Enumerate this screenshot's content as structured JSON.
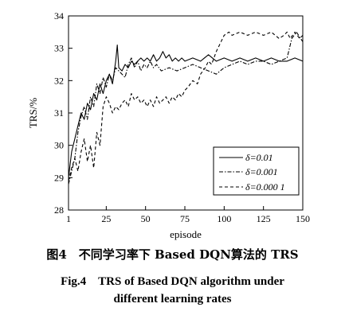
{
  "caption": {
    "cn": "图4　不同学习率下 Based DQN算法的 TRS",
    "en_line1": "Fig.4　TRS of Based DQN algorithm under",
    "en_line2": "different learning rates"
  },
  "chart_data": {
    "type": "line",
    "title": "",
    "xlabel": "episode",
    "ylabel": "TRS/%",
    "xlim": [
      1,
      150
    ],
    "ylim": [
      28,
      34
    ],
    "xticks": [
      1,
      25,
      50,
      75,
      100,
      125,
      150
    ],
    "xtick_labels": [
      "1",
      "25",
      "50",
      "75",
      "100",
      "125",
      "150"
    ],
    "yticks": [
      28,
      29,
      30,
      31,
      32,
      33,
      34
    ],
    "ytick_labels": [
      "28",
      "29",
      "30",
      "31",
      "32",
      "33",
      "34"
    ],
    "grid": false,
    "legend_position": "bottom-right",
    "series": [
      {
        "name": "δ=0.01",
        "style": "solid",
        "x": [
          1,
          3,
          5,
          7,
          9,
          11,
          13,
          15,
          17,
          19,
          21,
          23,
          25,
          27,
          29,
          31,
          32,
          33,
          35,
          37,
          39,
          41,
          43,
          45,
          47,
          49,
          51,
          53,
          55,
          57,
          59,
          61,
          63,
          65,
          67,
          69,
          71,
          73,
          75,
          80,
          85,
          90,
          95,
          100,
          105,
          110,
          115,
          120,
          125,
          130,
          135,
          140,
          145,
          150
        ],
        "y": [
          29.0,
          29.8,
          30.2,
          30.6,
          31.0,
          30.8,
          31.3,
          31.1,
          31.6,
          31.4,
          31.9,
          31.6,
          32.0,
          32.2,
          31.9,
          32.6,
          33.1,
          32.4,
          32.3,
          32.5,
          32.4,
          32.6,
          32.5,
          32.6,
          32.7,
          32.6,
          32.7,
          32.6,
          32.8,
          32.6,
          32.7,
          32.9,
          32.7,
          32.8,
          32.6,
          32.7,
          32.6,
          32.7,
          32.6,
          32.7,
          32.6,
          32.8,
          32.6,
          32.7,
          32.6,
          32.7,
          32.6,
          32.7,
          32.6,
          32.7,
          32.6,
          32.6,
          32.7,
          32.6
        ]
      },
      {
        "name": "δ=0.001",
        "style": "dashdot",
        "x": [
          1,
          3,
          5,
          7,
          9,
          11,
          13,
          15,
          17,
          19,
          21,
          23,
          25,
          27,
          29,
          31,
          33,
          35,
          37,
          39,
          41,
          43,
          45,
          47,
          49,
          51,
          53,
          55,
          57,
          60,
          65,
          70,
          75,
          80,
          85,
          90,
          95,
          100,
          105,
          110,
          115,
          120,
          125,
          130,
          135,
          140,
          143,
          146,
          150
        ],
        "y": [
          28.8,
          29.2,
          29.6,
          30.4,
          30.9,
          31.2,
          30.8,
          31.5,
          31.2,
          31.9,
          31.6,
          32.1,
          31.8,
          32.2,
          32.0,
          32.4,
          32.3,
          32.2,
          32.1,
          32.5,
          32.7,
          32.4,
          32.6,
          32.3,
          32.5,
          32.4,
          32.6,
          32.4,
          32.5,
          32.3,
          32.4,
          32.3,
          32.4,
          32.5,
          32.4,
          32.3,
          32.2,
          32.4,
          32.5,
          32.6,
          32.5,
          32.6,
          32.6,
          32.5,
          32.6,
          32.7,
          33.3,
          33.5,
          33.2
        ]
      },
      {
        "name": "δ=0.000 1",
        "style": "dashed",
        "x": [
          1,
          3,
          5,
          7,
          9,
          11,
          13,
          15,
          17,
          19,
          21,
          23,
          25,
          27,
          29,
          31,
          33,
          35,
          37,
          39,
          41,
          43,
          45,
          47,
          49,
          51,
          53,
          55,
          57,
          59,
          61,
          63,
          65,
          67,
          69,
          71,
          73,
          75,
          77,
          80,
          83,
          85,
          88,
          90,
          92,
          95,
          98,
          100,
          103,
          105,
          110,
          115,
          120,
          125,
          130,
          135,
          138,
          140,
          142,
          145,
          148,
          150
        ],
        "y": [
          28.9,
          29.3,
          29.6,
          29.2,
          29.8,
          30.2,
          29.5,
          30.0,
          29.3,
          30.4,
          30.0,
          31.2,
          31.5,
          31.3,
          31.0,
          31.2,
          31.1,
          31.3,
          31.4,
          31.2,
          31.6,
          31.4,
          31.5,
          31.3,
          31.4,
          31.2,
          31.4,
          31.2,
          31.5,
          31.3,
          31.4,
          31.5,
          31.3,
          31.5,
          31.4,
          31.6,
          31.5,
          31.7,
          31.8,
          32.0,
          31.9,
          32.2,
          32.4,
          32.6,
          32.5,
          32.9,
          33.2,
          33.4,
          33.5,
          33.4,
          33.5,
          33.4,
          33.5,
          33.4,
          33.5,
          33.3,
          33.4,
          33.5,
          33.3,
          33.5,
          33.3,
          33.4
        ]
      }
    ]
  }
}
